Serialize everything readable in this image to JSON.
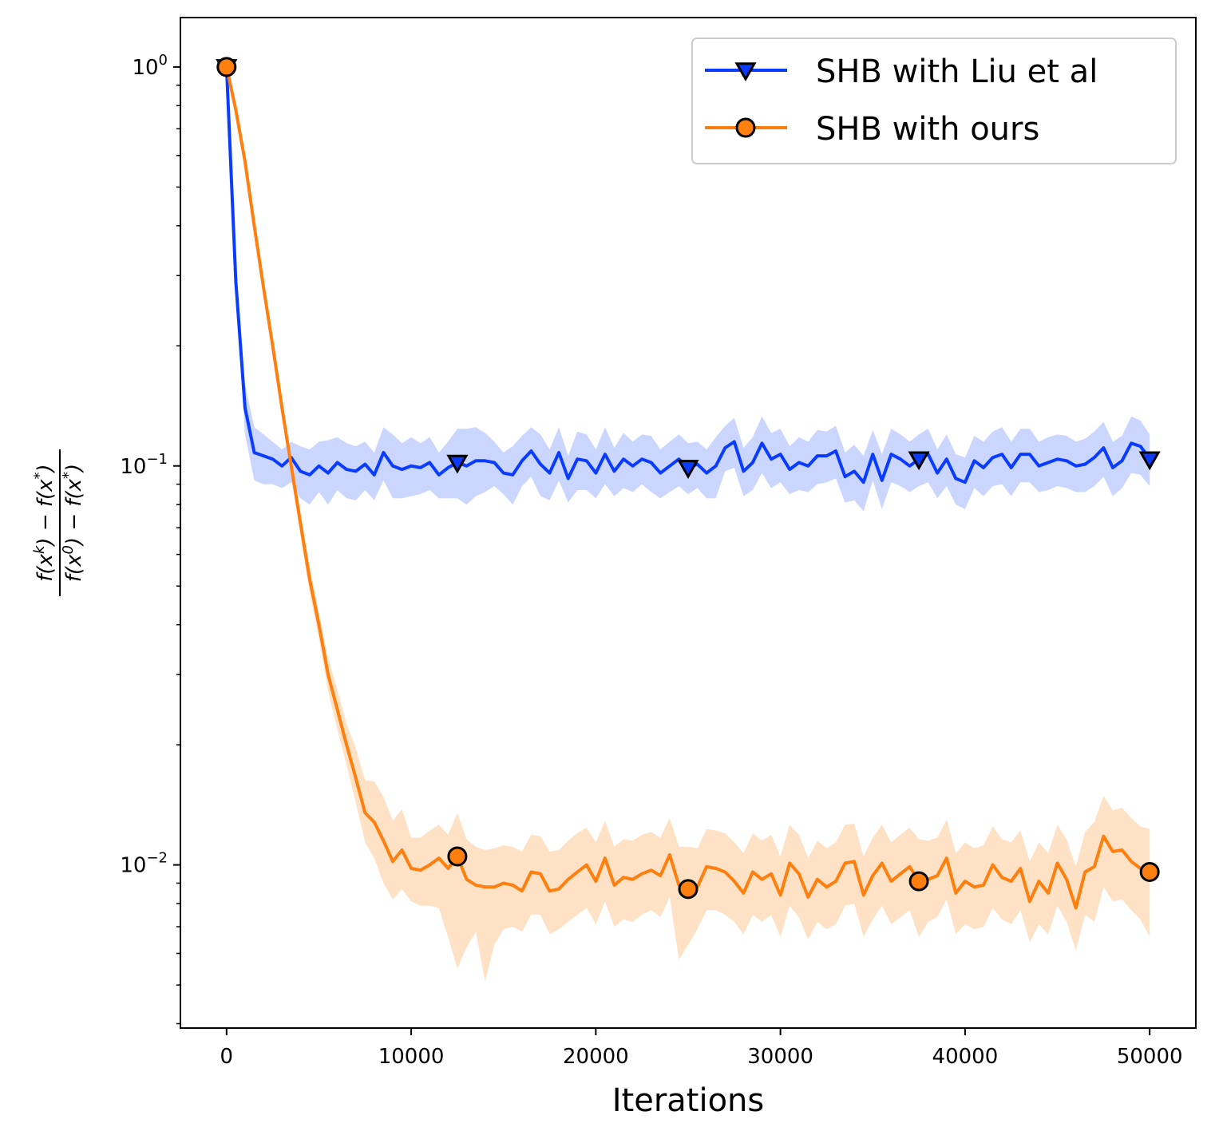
{
  "chart_data": {
    "type": "line",
    "title": "",
    "xlabel": "Iterations",
    "ylabel_parts": {
      "numerator": [
        "f(x",
        "k",
        ") − f(x",
        "*",
        ")"
      ],
      "denominator": [
        "f(x",
        "0",
        ") − f(x",
        "*",
        ")"
      ]
    },
    "yscale": "log",
    "xlim": [
      -2500,
      52500
    ],
    "ylim": [
      0.0039,
      1.33
    ],
    "x_ticks": [
      0,
      10000,
      20000,
      30000,
      40000,
      50000
    ],
    "x_tick_labels": [
      "0",
      "10000",
      "20000",
      "30000",
      "40000",
      "50000"
    ],
    "y_ticks": [
      {
        "value": 1,
        "base": "10",
        "exp": "0"
      },
      {
        "value": 0.1,
        "base": "10",
        "exp": "−1"
      },
      {
        "value": 0.01,
        "base": "10",
        "exp": "−2"
      }
    ],
    "legend_position": "top-right",
    "series": [
      {
        "name": "SHB with Liu et al",
        "color": "#0a3cff",
        "band_color": "#c8d4ff",
        "marker": "triangle-down",
        "marker_x": [
          0,
          12500,
          25000,
          37500,
          50000
        ],
        "x": [
          0,
          500,
          1000,
          1500,
          2000,
          2500,
          3000,
          3500,
          4000,
          4500,
          5000,
          5500,
          6000,
          6500,
          7000,
          7500,
          8000,
          8500,
          9000,
          9500,
          10000,
          10500,
          11000,
          11500,
          12000,
          12500,
          13000,
          13500,
          14000,
          14500,
          15000,
          15500,
          16000,
          16500,
          17000,
          17500,
          18000,
          18500,
          19000,
          19500,
          20000,
          20500,
          21000,
          21500,
          22000,
          22500,
          23000,
          23500,
          24000,
          24500,
          25000,
          25500,
          26000,
          26500,
          27000,
          27500,
          28000,
          28500,
          29000,
          29500,
          30000,
          30500,
          31000,
          31500,
          32000,
          32500,
          33000,
          33500,
          34000,
          34500,
          35000,
          35500,
          36000,
          36500,
          37000,
          37500,
          38000,
          38500,
          39000,
          39500,
          40000,
          40500,
          41000,
          41500,
          42000,
          42500,
          43000,
          43500,
          44000,
          44500,
          45000,
          45500,
          46000,
          46500,
          47000,
          47500,
          48000,
          48500,
          49000,
          49500,
          50000
        ],
        "y": [
          1.0,
          0.29,
          0.14,
          0.108,
          0.106,
          0.104,
          0.1,
          0.105,
          0.097,
          0.095,
          0.1,
          0.096,
          0.102,
          0.098,
          0.097,
          0.101,
          0.095,
          0.108,
          0.1,
          0.098,
          0.1,
          0.099,
          0.102,
          0.095,
          0.099,
          0.102,
          0.1,
          0.103,
          0.103,
          0.102,
          0.096,
          0.095,
          0.103,
          0.109,
          0.101,
          0.096,
          0.108,
          0.093,
          0.104,
          0.103,
          0.096,
          0.107,
          0.097,
          0.104,
          0.1,
          0.104,
          0.102,
          0.096,
          0.1,
          0.104,
          0.099,
          0.101,
          0.096,
          0.1,
          0.111,
          0.115,
          0.097,
          0.102,
          0.114,
          0.104,
          0.107,
          0.098,
          0.102,
          0.1,
          0.106,
          0.106,
          0.109,
          0.094,
          0.097,
          0.091,
          0.107,
          0.092,
          0.107,
          0.104,
          0.1,
          0.104,
          0.107,
          0.096,
          0.104,
          0.093,
          0.091,
          0.103,
          0.099,
          0.105,
          0.107,
          0.099,
          0.107,
          0.107,
          0.1,
          0.102,
          0.104,
          0.103,
          0.1,
          0.101,
          0.105,
          0.111,
          0.099,
          0.103,
          0.114,
          0.112,
          0.104
        ],
        "upper": [
          1.0,
          0.3,
          0.16,
          0.125,
          0.12,
          0.115,
          0.11,
          0.115,
          0.112,
          0.11,
          0.115,
          0.116,
          0.118,
          0.114,
          0.112,
          0.115,
          0.108,
          0.125,
          0.12,
          0.114,
          0.118,
          0.114,
          0.118,
          0.108,
          0.115,
          0.124,
          0.124,
          0.125,
          0.121,
          0.115,
          0.108,
          0.112,
          0.119,
          0.125,
          0.12,
          0.11,
          0.125,
          0.106,
          0.122,
          0.12,
          0.11,
          0.125,
          0.111,
          0.121,
          0.115,
          0.12,
          0.119,
          0.11,
          0.115,
          0.12,
          0.114,
          0.115,
          0.11,
          0.118,
          0.126,
          0.132,
          0.111,
          0.118,
          0.133,
          0.121,
          0.124,
          0.112,
          0.118,
          0.115,
          0.123,
          0.122,
          0.126,
          0.108,
          0.113,
          0.106,
          0.123,
          0.107,
          0.124,
          0.12,
          0.115,
          0.12,
          0.124,
          0.11,
          0.12,
          0.107,
          0.105,
          0.119,
          0.115,
          0.122,
          0.125,
          0.115,
          0.124,
          0.124,
          0.115,
          0.118,
          0.12,
          0.119,
          0.115,
          0.117,
          0.122,
          0.129,
          0.115,
          0.119,
          0.133,
          0.13,
          0.12
        ],
        "lower": [
          1.0,
          0.28,
          0.12,
          0.092,
          0.09,
          0.09,
          0.088,
          0.091,
          0.083,
          0.08,
          0.086,
          0.08,
          0.087,
          0.083,
          0.082,
          0.087,
          0.082,
          0.092,
          0.083,
          0.083,
          0.084,
          0.085,
          0.087,
          0.083,
          0.083,
          0.083,
          0.08,
          0.084,
          0.086,
          0.089,
          0.085,
          0.08,
          0.089,
          0.094,
          0.084,
          0.082,
          0.092,
          0.081,
          0.087,
          0.087,
          0.083,
          0.09,
          0.084,
          0.088,
          0.086,
          0.09,
          0.086,
          0.083,
          0.086,
          0.089,
          0.085,
          0.088,
          0.083,
          0.083,
          0.097,
          0.099,
          0.084,
          0.087,
          0.096,
          0.088,
          0.091,
          0.085,
          0.087,
          0.086,
          0.09,
          0.091,
          0.093,
          0.081,
          0.082,
          0.077,
          0.092,
          0.078,
          0.091,
          0.089,
          0.086,
          0.089,
          0.091,
          0.083,
          0.089,
          0.08,
          0.078,
          0.088,
          0.084,
          0.089,
          0.09,
          0.084,
          0.091,
          0.091,
          0.086,
          0.087,
          0.089,
          0.088,
          0.086,
          0.086,
          0.089,
          0.094,
          0.084,
          0.088,
          0.096,
          0.095,
          0.089
        ]
      },
      {
        "name": "SHB with ours",
        "color": "#ff7f0e",
        "band_color": "#ffe0c2",
        "marker": "circle",
        "marker_x": [
          0,
          12500,
          25000,
          37500,
          50000
        ],
        "x": [
          0,
          500,
          1000,
          1500,
          2000,
          2500,
          3000,
          3500,
          4000,
          4500,
          5000,
          5500,
          6000,
          6500,
          7000,
          7500,
          8000,
          8500,
          9000,
          9500,
          10000,
          10500,
          11000,
          11500,
          12000,
          12500,
          13000,
          13500,
          14000,
          14500,
          15000,
          15500,
          16000,
          16500,
          17000,
          17500,
          18000,
          18500,
          19000,
          19500,
          20000,
          20500,
          21000,
          21500,
          22000,
          22500,
          23000,
          23500,
          24000,
          24500,
          25000,
          25500,
          26000,
          26500,
          27000,
          27500,
          28000,
          28500,
          29000,
          29500,
          30000,
          30500,
          31000,
          31500,
          32000,
          32500,
          33000,
          33500,
          34000,
          34500,
          35000,
          35500,
          36000,
          36500,
          37000,
          37500,
          38000,
          38500,
          39000,
          39500,
          40000,
          40500,
          41000,
          41500,
          42000,
          42500,
          43000,
          43500,
          44000,
          44500,
          45000,
          45500,
          46000,
          46500,
          47000,
          47500,
          48000,
          48500,
          49000,
          49500,
          50000
        ],
        "y": [
          1.0,
          0.78,
          0.58,
          0.4,
          0.28,
          0.2,
          0.14,
          0.1,
          0.072,
          0.052,
          0.04,
          0.03,
          0.0245,
          0.02,
          0.0165,
          0.0135,
          0.0128,
          0.0115,
          0.0102,
          0.0109,
          0.0098,
          0.0097,
          0.01,
          0.0104,
          0.0098,
          0.0105,
          0.0092,
          0.0089,
          0.0088,
          0.0088,
          0.009,
          0.0089,
          0.0086,
          0.0096,
          0.0095,
          0.0086,
          0.0087,
          0.0092,
          0.0096,
          0.01,
          0.0091,
          0.0104,
          0.0089,
          0.0093,
          0.0092,
          0.0095,
          0.0097,
          0.0094,
          0.0106,
          0.0089,
          0.0087,
          0.0088,
          0.0099,
          0.0098,
          0.0096,
          0.0091,
          0.0085,
          0.0096,
          0.0092,
          0.0095,
          0.0084,
          0.0101,
          0.0095,
          0.0083,
          0.0092,
          0.0088,
          0.0091,
          0.0101,
          0.0102,
          0.0084,
          0.0094,
          0.0101,
          0.0091,
          0.0095,
          0.0099,
          0.0091,
          0.0092,
          0.0094,
          0.0104,
          0.0085,
          0.0091,
          0.0088,
          0.0089,
          0.01,
          0.0093,
          0.0091,
          0.0098,
          0.0081,
          0.0091,
          0.0085,
          0.0101,
          0.0092,
          0.0078,
          0.0096,
          0.0099,
          0.0118,
          0.0108,
          0.0109,
          0.0102,
          0.0098,
          0.0096
        ],
        "upper": [
          1.0,
          0.8,
          0.6,
          0.42,
          0.29,
          0.21,
          0.148,
          0.106,
          0.077,
          0.056,
          0.043,
          0.033,
          0.0275,
          0.0226,
          0.0196,
          0.0163,
          0.0162,
          0.0148,
          0.0129,
          0.0138,
          0.0117,
          0.0117,
          0.0122,
          0.0126,
          0.0119,
          0.0135,
          0.0116,
          0.0111,
          0.0109,
          0.011,
          0.0112,
          0.0111,
          0.0108,
          0.0119,
          0.0118,
          0.0108,
          0.0109,
          0.0115,
          0.012,
          0.0124,
          0.0114,
          0.0129,
          0.0111,
          0.0116,
          0.0115,
          0.0119,
          0.0121,
          0.0117,
          0.0131,
          0.0111,
          0.0111,
          0.011,
          0.0123,
          0.0122,
          0.012,
          0.0114,
          0.0107,
          0.012,
          0.0115,
          0.0119,
          0.0105,
          0.0126,
          0.0119,
          0.0104,
          0.0115,
          0.011,
          0.0114,
          0.0126,
          0.0127,
          0.0105,
          0.0117,
          0.0126,
          0.0114,
          0.0119,
          0.0124,
          0.0116,
          0.0115,
          0.0117,
          0.013,
          0.0107,
          0.0114,
          0.011,
          0.0112,
          0.0125,
          0.0116,
          0.0114,
          0.0122,
          0.0102,
          0.0114,
          0.0107,
          0.0126,
          0.0116,
          0.0099,
          0.0121,
          0.0128,
          0.0149,
          0.0137,
          0.0139,
          0.0131,
          0.0125,
          0.0123
        ],
        "lower": [
          1.0,
          0.76,
          0.56,
          0.38,
          0.27,
          0.19,
          0.132,
          0.094,
          0.067,
          0.048,
          0.037,
          0.0272,
          0.0218,
          0.0178,
          0.0143,
          0.0114,
          0.0104,
          0.009,
          0.0082,
          0.0087,
          0.0081,
          0.0079,
          0.0079,
          0.0078,
          0.0066,
          0.0055,
          0.0062,
          0.0068,
          0.0051,
          0.0063,
          0.0069,
          0.007,
          0.0068,
          0.0075,
          0.0075,
          0.0067,
          0.0069,
          0.0072,
          0.0075,
          0.0078,
          0.0071,
          0.0081,
          0.007,
          0.0073,
          0.0072,
          0.0075,
          0.0077,
          0.0074,
          0.0083,
          0.0058,
          0.0063,
          0.0069,
          0.0077,
          0.0077,
          0.0075,
          0.0072,
          0.0067,
          0.0075,
          0.0072,
          0.0075,
          0.0066,
          0.0079,
          0.0074,
          0.0065,
          0.0072,
          0.0069,
          0.0071,
          0.0079,
          0.008,
          0.0066,
          0.0073,
          0.0079,
          0.0071,
          0.0074,
          0.0077,
          0.0066,
          0.0072,
          0.0074,
          0.0082,
          0.0067,
          0.0071,
          0.0069,
          0.007,
          0.0078,
          0.0073,
          0.0071,
          0.0077,
          0.0064,
          0.0071,
          0.0067,
          0.0079,
          0.0072,
          0.0061,
          0.0075,
          0.0072,
          0.0088,
          0.0081,
          0.0082,
          0.0077,
          0.0073,
          0.0066
        ]
      }
    ]
  }
}
